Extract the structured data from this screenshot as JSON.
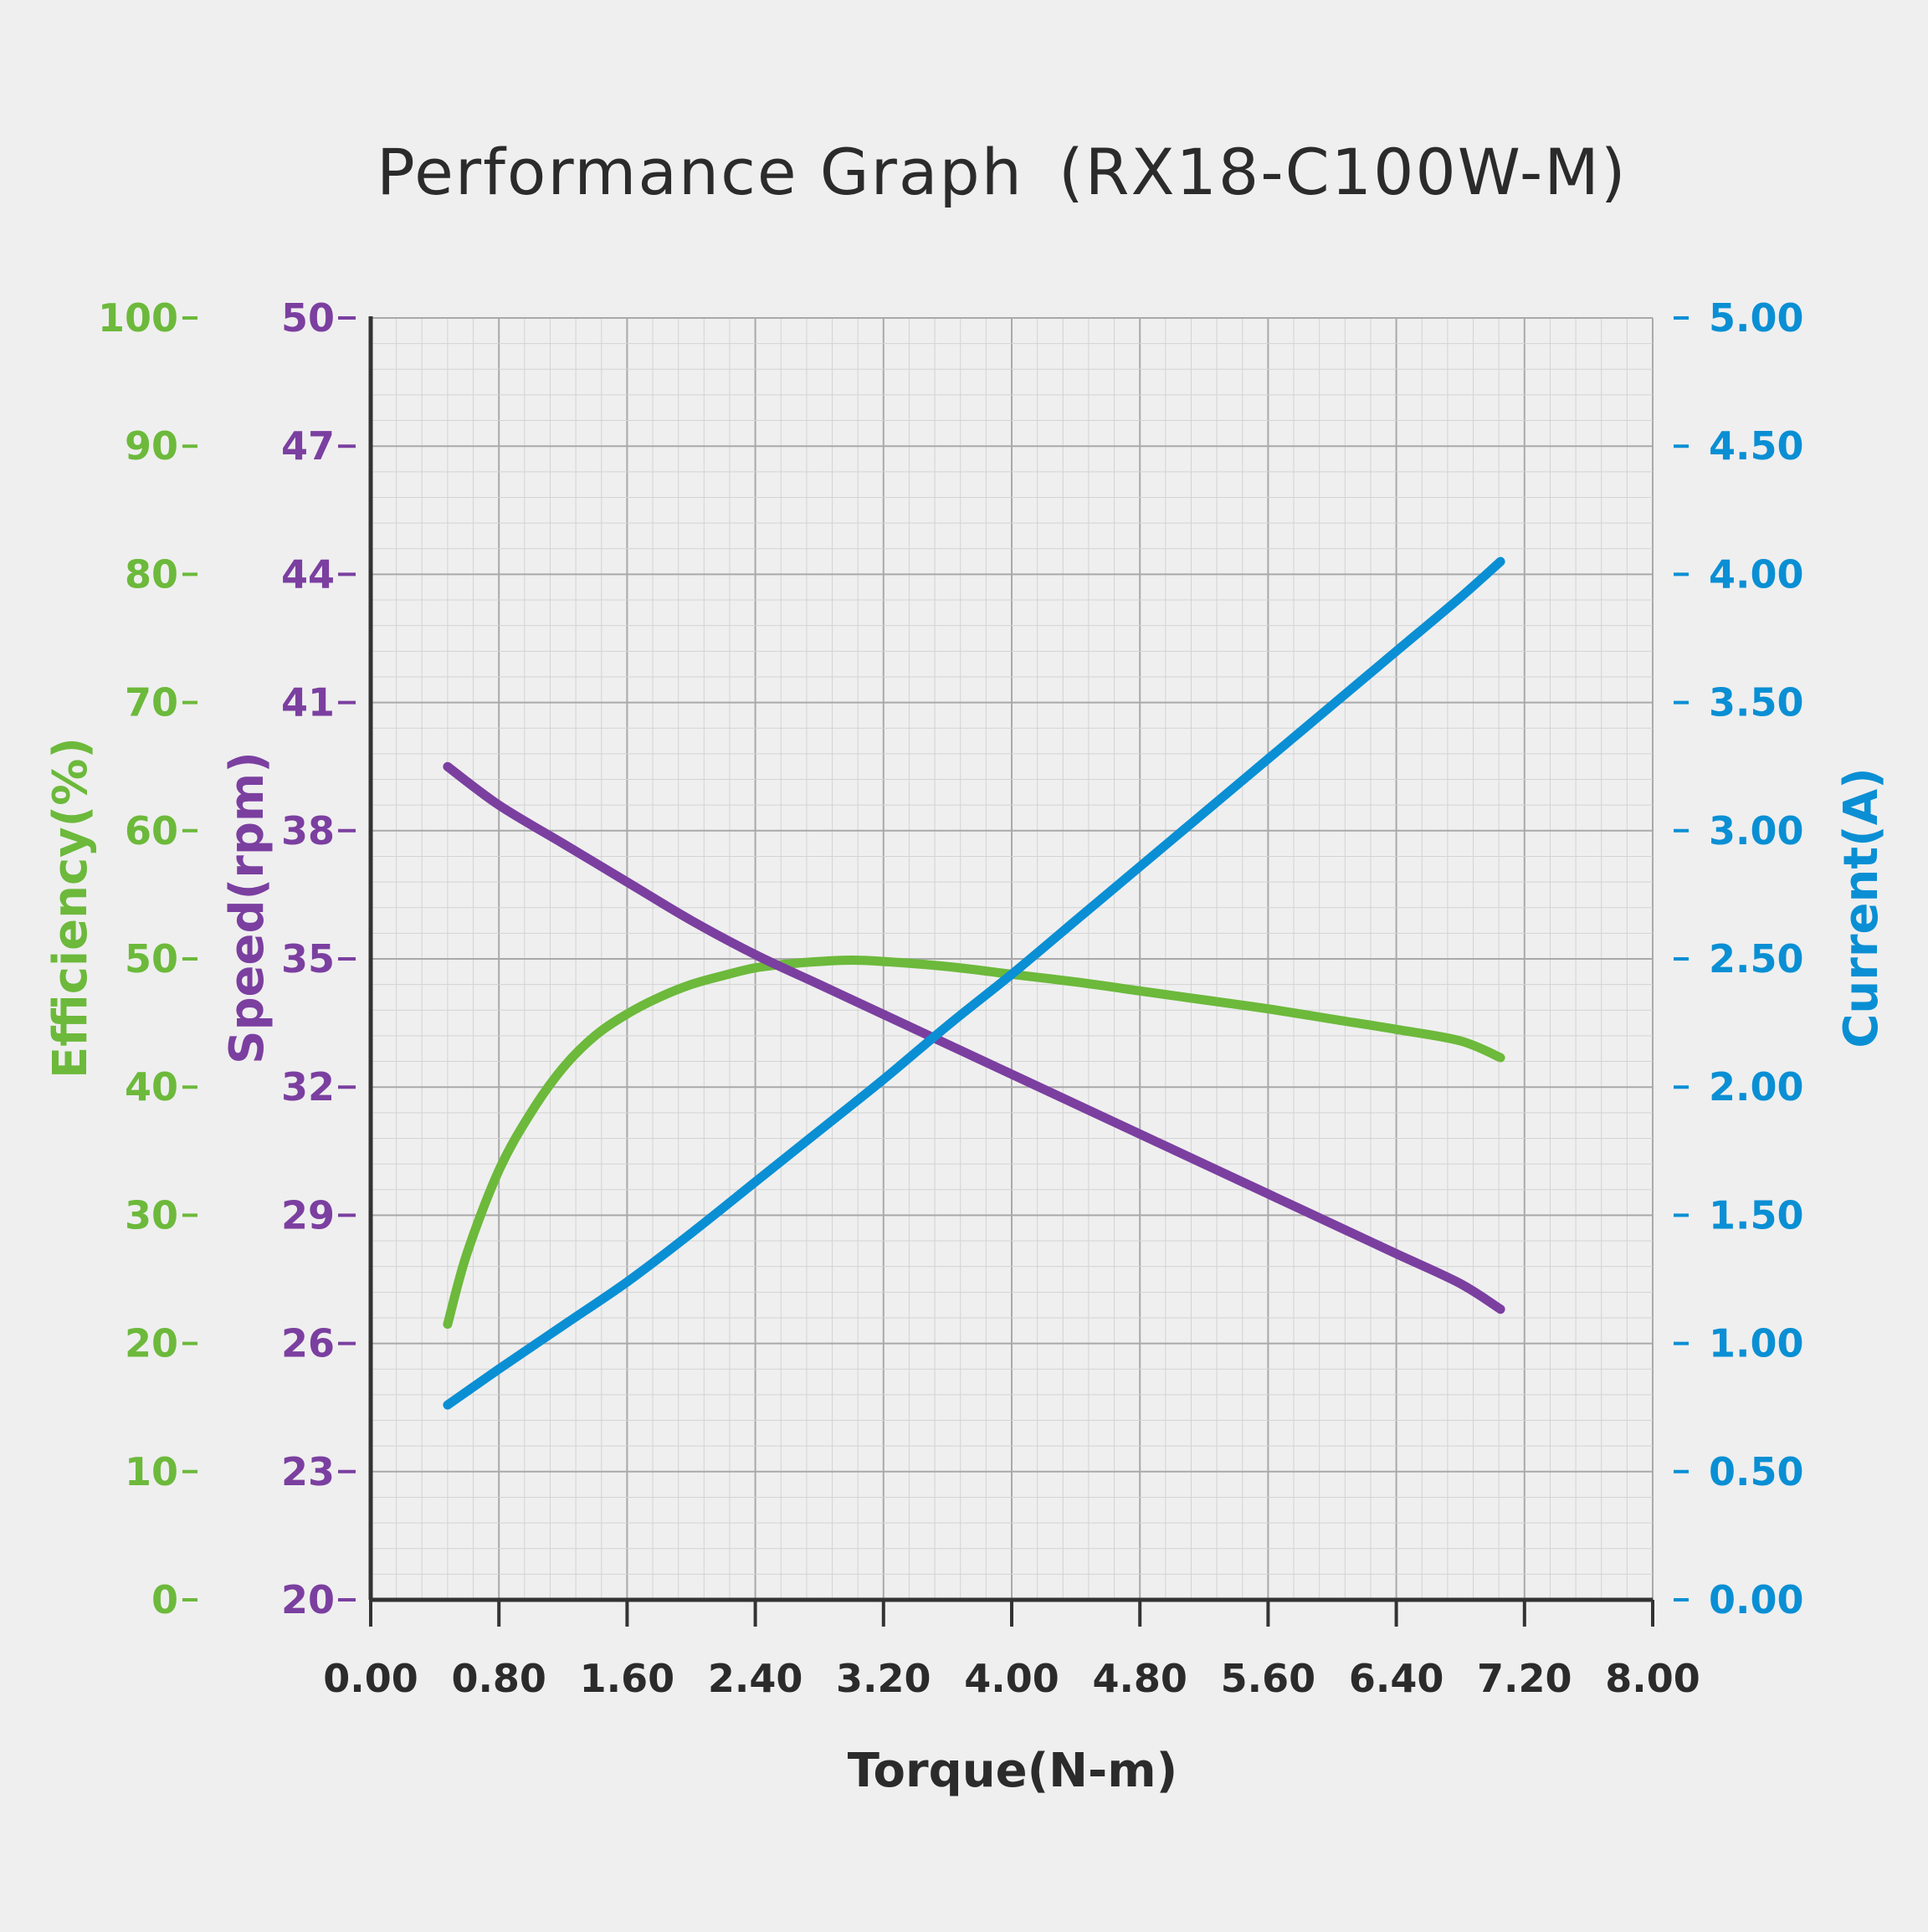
{
  "chart_data": {
    "type": "line",
    "title": "Performance Graph",
    "model": "(RX18-C100W-M)",
    "xlabel": "Torque(N-m)",
    "x_ticks": [
      "0.00",
      "0.80",
      "1.60",
      "2.40",
      "3.20",
      "4.00",
      "4.80",
      "5.60",
      "6.40",
      "7.20",
      "8.00"
    ],
    "xlim": [
      0,
      8
    ],
    "axes": {
      "efficiency": {
        "label": "Efficiency(%)",
        "color": "#6cb93b",
        "range": [
          0,
          100
        ],
        "ticks": [
          "100",
          "90",
          "80",
          "70",
          "60",
          "50",
          "40",
          "30",
          "20",
          "10",
          "0"
        ]
      },
      "speed": {
        "label": "Speed(rpm)",
        "color": "#7b3fa0",
        "range": [
          20,
          50
        ],
        "ticks": [
          "50",
          "47",
          "44",
          "41",
          "38",
          "35",
          "32",
          "29",
          "26",
          "23",
          "20"
        ]
      },
      "current": {
        "label": "Current(A)",
        "color": "#0a8fd4",
        "range": [
          0,
          5
        ],
        "ticks": [
          "5.00",
          "4.50",
          "4.00",
          "3.50",
          "3.00",
          "2.50",
          "2.00",
          "1.50",
          "1.00",
          "0.50",
          "0.00"
        ]
      }
    },
    "grid": true,
    "series": [
      {
        "axis": "efficiency",
        "x": [
          0.48,
          0.6,
          0.8,
          1.0,
          1.2,
          1.4,
          1.6,
          1.8,
          2.0,
          2.2,
          2.4,
          2.6,
          2.8,
          3.0,
          3.2,
          3.6,
          4.0,
          4.4,
          4.8,
          5.2,
          5.6,
          6.0,
          6.4,
          6.8,
          7.05
        ],
        "y": [
          21.5,
          27,
          33.5,
          38,
          41.5,
          44,
          45.7,
          47,
          48,
          48.7,
          49.3,
          49.6,
          49.8,
          49.9,
          49.8,
          49.4,
          48.8,
          48.2,
          47.5,
          46.8,
          46.1,
          45.3,
          44.5,
          43.6,
          42.3
        ]
      },
      {
        "axis": "speed",
        "x": [
          0.48,
          0.8,
          1.2,
          1.6,
          2.0,
          2.4,
          2.8,
          3.2,
          3.6,
          4.0,
          4.4,
          4.8,
          5.2,
          5.6,
          6.0,
          6.4,
          6.8,
          7.05
        ],
        "y": [
          39.5,
          38.6,
          37.7,
          36.8,
          35.9,
          35.1,
          34.4,
          33.7,
          33.0,
          32.3,
          31.6,
          30.9,
          30.2,
          29.5,
          28.8,
          28.1,
          27.4,
          26.8
        ]
      },
      {
        "axis": "current",
        "x": [
          0.48,
          0.8,
          1.2,
          1.6,
          2.0,
          2.4,
          2.8,
          3.2,
          3.6,
          4.0,
          4.4,
          4.8,
          5.2,
          5.6,
          6.0,
          6.4,
          6.8,
          7.05
        ],
        "y": [
          0.76,
          0.9,
          1.07,
          1.24,
          1.43,
          1.63,
          1.83,
          2.03,
          2.24,
          2.44,
          2.65,
          2.86,
          3.07,
          3.28,
          3.49,
          3.7,
          3.91,
          4.05
        ]
      }
    ]
  }
}
